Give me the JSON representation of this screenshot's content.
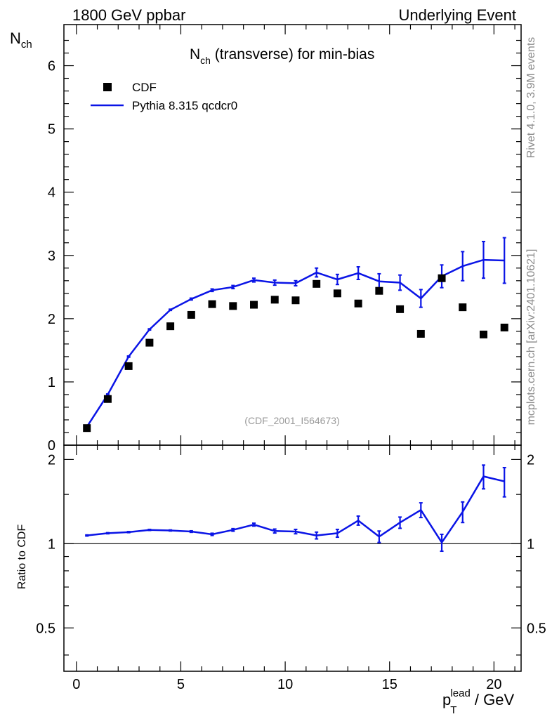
{
  "header": {
    "left": "1800 GeV ppbar",
    "right": "Underlying Event"
  },
  "side_labels": {
    "rivet": "Rivet 4.1.0,  3.9M events",
    "mcplots": "mcplots.cern.ch [arXiv:2401.10621]"
  },
  "analysis_tag": "(CDF_2001_I564673)",
  "colors": {
    "mc": "#0a14e6",
    "data": "#000000",
    "watermark": "#8c8c8c"
  },
  "chart_data": [
    {
      "type": "scatter",
      "panel": "main",
      "title": {
        "main": "N",
        "sub": "ch",
        "rest": " (transverse) for min-bias"
      },
      "ylabel": {
        "main": "N",
        "sub": "ch"
      },
      "xlabel": "",
      "xlim": [
        -0.6,
        21.3
      ],
      "ylim": [
        0,
        6.65
      ],
      "yticks": [
        "0",
        "1",
        "2",
        "3",
        "4",
        "5",
        "6"
      ],
      "legend_position": "top-left",
      "series": [
        {
          "name": "CDF",
          "style": "markers",
          "x": [
            0.5,
            1.5,
            2.5,
            3.5,
            4.5,
            5.5,
            6.5,
            7.5,
            8.5,
            9.5,
            10.5,
            11.5,
            12.5,
            13.5,
            14.5,
            15.5,
            16.5,
            17.5,
            18.5,
            19.5,
            20.5
          ],
          "y": [
            0.27,
            0.73,
            1.25,
            1.62,
            1.88,
            2.06,
            2.23,
            2.2,
            2.22,
            2.3,
            2.29,
            2.55,
            2.4,
            2.24,
            2.44,
            2.15,
            1.76,
            2.64,
            2.18,
            1.75,
            1.86
          ]
        },
        {
          "name": "Pythia 8.315 qcdcr0",
          "style": "line",
          "x": [
            0.5,
            1.5,
            2.5,
            3.5,
            4.5,
            5.5,
            6.5,
            7.5,
            8.5,
            9.5,
            10.5,
            11.5,
            12.5,
            13.5,
            14.5,
            15.5,
            16.5,
            17.5,
            18.5,
            19.5,
            20.5
          ],
          "y": [
            0.29,
            0.8,
            1.4,
            1.83,
            2.14,
            2.31,
            2.45,
            2.5,
            2.61,
            2.57,
            2.56,
            2.73,
            2.62,
            2.72,
            2.59,
            2.57,
            2.32,
            2.67,
            2.83,
            2.93,
            2.92
          ],
          "err": [
            0.01,
            0.01,
            0.01,
            0.01,
            0.01,
            0.015,
            0.02,
            0.025,
            0.03,
            0.04,
            0.04,
            0.07,
            0.08,
            0.1,
            0.12,
            0.12,
            0.14,
            0.18,
            0.23,
            0.29,
            0.36
          ]
        }
      ]
    },
    {
      "type": "line",
      "panel": "ratio",
      "ylabel": "Ratio to CDF",
      "xlabel": {
        "main": "p",
        "sub": "T",
        "sup": "lead",
        "rest": " / GeV"
      },
      "xlim": [
        -0.6,
        21.3
      ],
      "ylim": [
        0.35,
        2.25
      ],
      "yticks": [
        "0.5",
        "1",
        "2"
      ],
      "ytick_values": [
        0.5,
        1,
        2
      ],
      "xticks": [
        "0",
        "5",
        "10",
        "15",
        "20"
      ],
      "xtick_values": [
        0,
        5,
        10,
        15,
        20
      ],
      "reference_line": 1,
      "series": [
        {
          "name": "Pythia 8.315 qcdcr0 / CDF",
          "x": [
            0.5,
            1.5,
            2.5,
            3.5,
            4.5,
            5.5,
            6.5,
            7.5,
            8.5,
            9.5,
            10.5,
            11.5,
            12.5,
            13.5,
            14.5,
            15.5,
            16.5,
            17.5,
            18.5,
            19.5,
            20.5
          ],
          "y": [
            1.07,
            1.09,
            1.1,
            1.12,
            1.115,
            1.105,
            1.08,
            1.12,
            1.17,
            1.11,
            1.105,
            1.07,
            1.09,
            1.21,
            1.06,
            1.19,
            1.32,
            1.01,
            1.3,
            1.74,
            1.67
          ],
          "err": [
            0.005,
            0.005,
            0.005,
            0.005,
            0.005,
            0.007,
            0.01,
            0.012,
            0.014,
            0.018,
            0.02,
            0.03,
            0.035,
            0.045,
            0.05,
            0.055,
            0.08,
            0.07,
            0.11,
            0.17,
            0.2
          ]
        }
      ]
    }
  ]
}
